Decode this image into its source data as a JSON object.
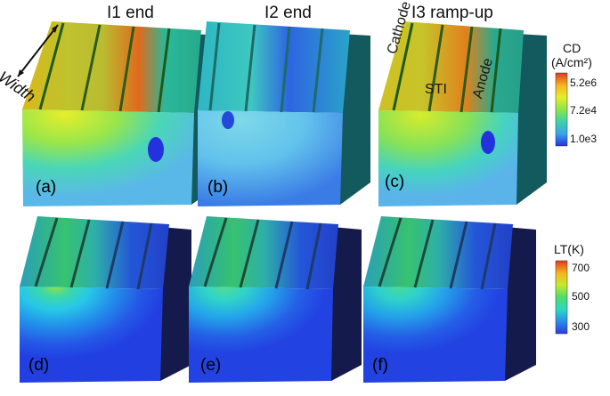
{
  "column_titles": [
    "I1 end",
    "I2 end",
    "I3 ramp-up"
  ],
  "width_label": "Width",
  "region_labels": {
    "cathode": "Cathode",
    "sti": "STI",
    "anode": "Anode"
  },
  "panel_labels": [
    "(a)",
    "(b)",
    "(c)",
    "(d)",
    "(e)",
    "(f)"
  ],
  "colorbar_cd": {
    "title": "CD",
    "unit": "(A/cm²)",
    "ticks": [
      "5.2e6",
      "7.2e4",
      "1.0e3"
    ]
  },
  "colorbar_lt": {
    "title": "LT(K)",
    "ticks": [
      "700",
      "500",
      "300"
    ]
  },
  "colors": {
    "cd_scale": [
      "#e03a1e",
      "#f7b51e",
      "#e7ed2a",
      "#8de54a",
      "#3bd2a8",
      "#36a8e8",
      "#2330e4"
    ],
    "lt_scale": [
      "#e03a1e",
      "#f7b51e",
      "#c6ea2c",
      "#4fdc6a",
      "#2ad8c6",
      "#2a8ee8",
      "#2a3ae4"
    ]
  }
}
